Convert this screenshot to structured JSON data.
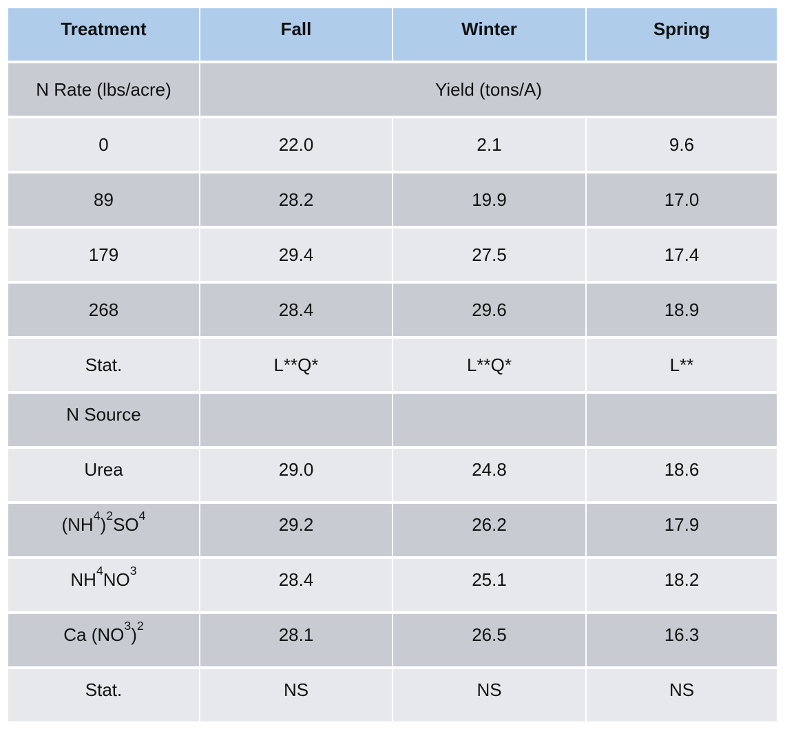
{
  "columns": [
    "Treatment",
    "Fall",
    "Winter",
    "Spring"
  ],
  "n_rate_section": {
    "label": "N Rate (lbs/acre)",
    "span_label": "Yield (tons/A)",
    "rows": [
      {
        "treatment": "0",
        "fall": "22.0",
        "winter": "2.1",
        "spring": "9.6"
      },
      {
        "treatment": "89",
        "fall": "28.2",
        "winter": "19.9",
        "spring": "17.0"
      },
      {
        "treatment": "179",
        "fall": "29.4",
        "winter": "27.5",
        "spring": "17.4"
      },
      {
        "treatment": "268",
        "fall": "28.4",
        "winter": "29.6",
        "spring": "18.9"
      },
      {
        "treatment": "Stat.",
        "fall": "L**Q*",
        "winter": "L**Q*",
        "spring": "L**"
      }
    ]
  },
  "n_source_section": {
    "label": "N Source",
    "rows": [
      {
        "treatment": "Urea",
        "fall": "29.0",
        "winter": "24.8",
        "spring": "18.6"
      },
      {
        "treatment": "(NH4)2SO4",
        "fall": "29.2",
        "winter": "26.2",
        "spring": "17.9"
      },
      {
        "treatment": "NH4NO3",
        "fall": "28.4",
        "winter": "25.1",
        "spring": "18.2"
      },
      {
        "treatment": "Ca (NO3)2",
        "fall": "28.1",
        "winter": "26.5",
        "spring": "16.3"
      },
      {
        "treatment": "Stat.",
        "fall": "NS",
        "winter": "NS",
        "spring": "NS"
      }
    ]
  },
  "colors": {
    "header_bg": "#afcdeb",
    "dark_row_bg": "#c8ccd2",
    "light_row_bg": "#e7e8eb"
  }
}
